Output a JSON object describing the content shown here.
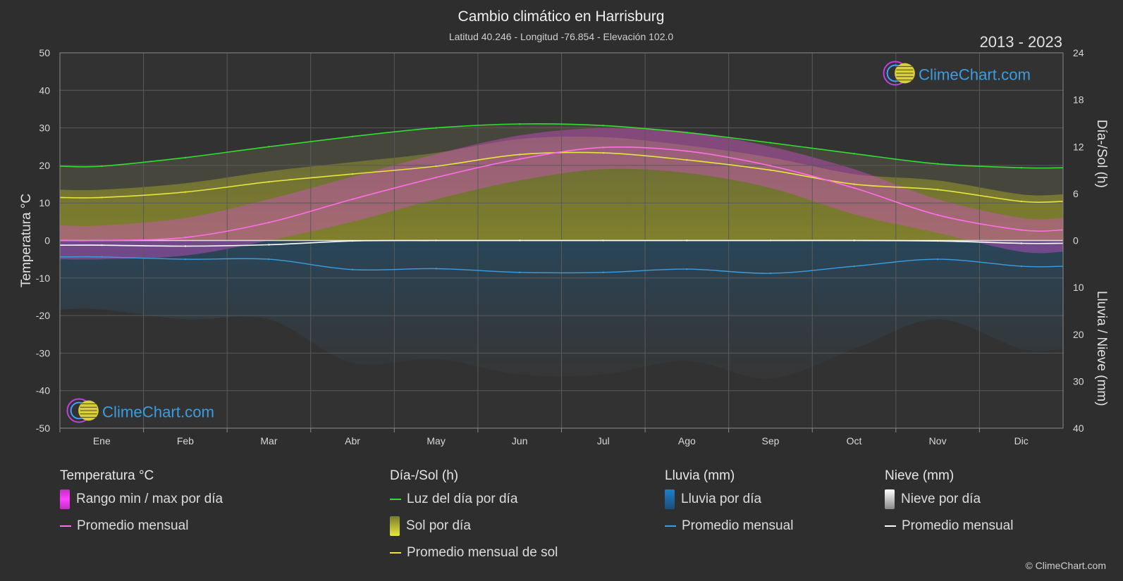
{
  "chart_data": {
    "type": "line",
    "title": "Cambio climático en Harrisburg",
    "subtitle": "Latitud 40.246 - Longitud -76.854 - Elevación 102.0",
    "period": "2013 - 2023",
    "brand": "ClimeChart.com",
    "copyright": "© ClimeChart.com",
    "categories": [
      "Ene",
      "Feb",
      "Mar",
      "Abr",
      "May",
      "Jun",
      "Jul",
      "Ago",
      "Sep",
      "Oct",
      "Nov",
      "Dic"
    ],
    "y_left": {
      "label": "Temperatura °C",
      "lim": [
        -50,
        50
      ],
      "ticks": [
        50,
        40,
        30,
        20,
        10,
        0,
        -10,
        -20,
        -30,
        -40,
        -50
      ]
    },
    "y_right_top": {
      "label": "Día-/Sol (h)",
      "lim": [
        0,
        24
      ],
      "ticks": [
        24,
        18,
        12,
        6,
        0
      ]
    },
    "y_right_bottom": {
      "label": "Lluvia / Nieve (mm)",
      "lim": [
        0,
        40
      ],
      "ticks": [
        10,
        20,
        30,
        40
      ]
    },
    "grid": true,
    "series": [
      {
        "name": "Luz del día por día",
        "axis": "sun_h",
        "color": "#33dd33",
        "values": [
          9.5,
          10.6,
          12.0,
          13.3,
          14.4,
          14.9,
          14.7,
          13.8,
          12.5,
          11.1,
          9.8,
          9.3
        ]
      },
      {
        "name": "Promedio mensual de sol",
        "axis": "sun_h",
        "color": "#e6e63c",
        "values": [
          5.5,
          6.2,
          7.5,
          8.5,
          9.5,
          11.0,
          11.2,
          10.3,
          9.0,
          7.2,
          6.5,
          5.0
        ]
      },
      {
        "name": "Promedio mensual",
        "group": "Temperatura °C",
        "axis": "temp_c",
        "color": "#ff6ee8",
        "values": [
          0.0,
          0.8,
          4.8,
          11.0,
          16.8,
          21.7,
          24.8,
          23.8,
          19.9,
          14.0,
          6.8,
          2.8
        ]
      },
      {
        "name": "Promedio mensual",
        "group": "Lluvia (mm)",
        "axis": "precip_mm",
        "color": "#3a9de0",
        "values": [
          3.5,
          4.0,
          4.0,
          6.2,
          6.0,
          6.8,
          6.8,
          6.1,
          7.0,
          5.5,
          4.0,
          5.5
        ]
      },
      {
        "name": "Promedio mensual",
        "group": "Nieve (mm)",
        "axis": "precip_mm",
        "color": "#ffffff",
        "values": [
          1.0,
          1.2,
          0.9,
          0.1,
          0.0,
          0.0,
          0.0,
          0.0,
          0.0,
          0.0,
          0.1,
          0.6
        ]
      }
    ],
    "temp_range": {
      "name": "Rango min / max por día",
      "min": [
        -5,
        -4,
        0,
        5,
        11,
        16,
        19,
        18,
        14,
        7,
        2,
        -3
      ],
      "max": [
        4,
        6,
        11,
        17,
        23,
        28,
        30,
        29,
        25,
        19,
        11,
        6
      ]
    }
  },
  "legend": [
    {
      "title": "Temperatura °C",
      "items": [
        {
          "label": "Rango min / max por día",
          "swatch": "box",
          "color": "#e040e0"
        },
        {
          "label": "Promedio mensual",
          "swatch": "line",
          "color": "#ff6ee8"
        }
      ]
    },
    {
      "title": "Día-/Sol (h)",
      "items": [
        {
          "label": "Luz del día por día",
          "swatch": "line",
          "color": "#33dd33"
        },
        {
          "label": "Sol por día",
          "swatch": "box",
          "color": "#c8c83a"
        },
        {
          "label": "Promedio mensual de sol",
          "swatch": "line",
          "color": "#e6e63c"
        }
      ]
    },
    {
      "title": "Lluvia (mm)",
      "items": [
        {
          "label": "Lluvia por día",
          "swatch": "box",
          "color": "#2a86cc"
        },
        {
          "label": "Promedio mensual",
          "swatch": "line",
          "color": "#3a9de0"
        }
      ]
    },
    {
      "title": "Nieve (mm)",
      "items": [
        {
          "label": "Nieve por día",
          "swatch": "box",
          "color": "#d8d8d8"
        },
        {
          "label": "Promedio mensual",
          "swatch": "line",
          "color": "#ffffff"
        }
      ]
    }
  ]
}
